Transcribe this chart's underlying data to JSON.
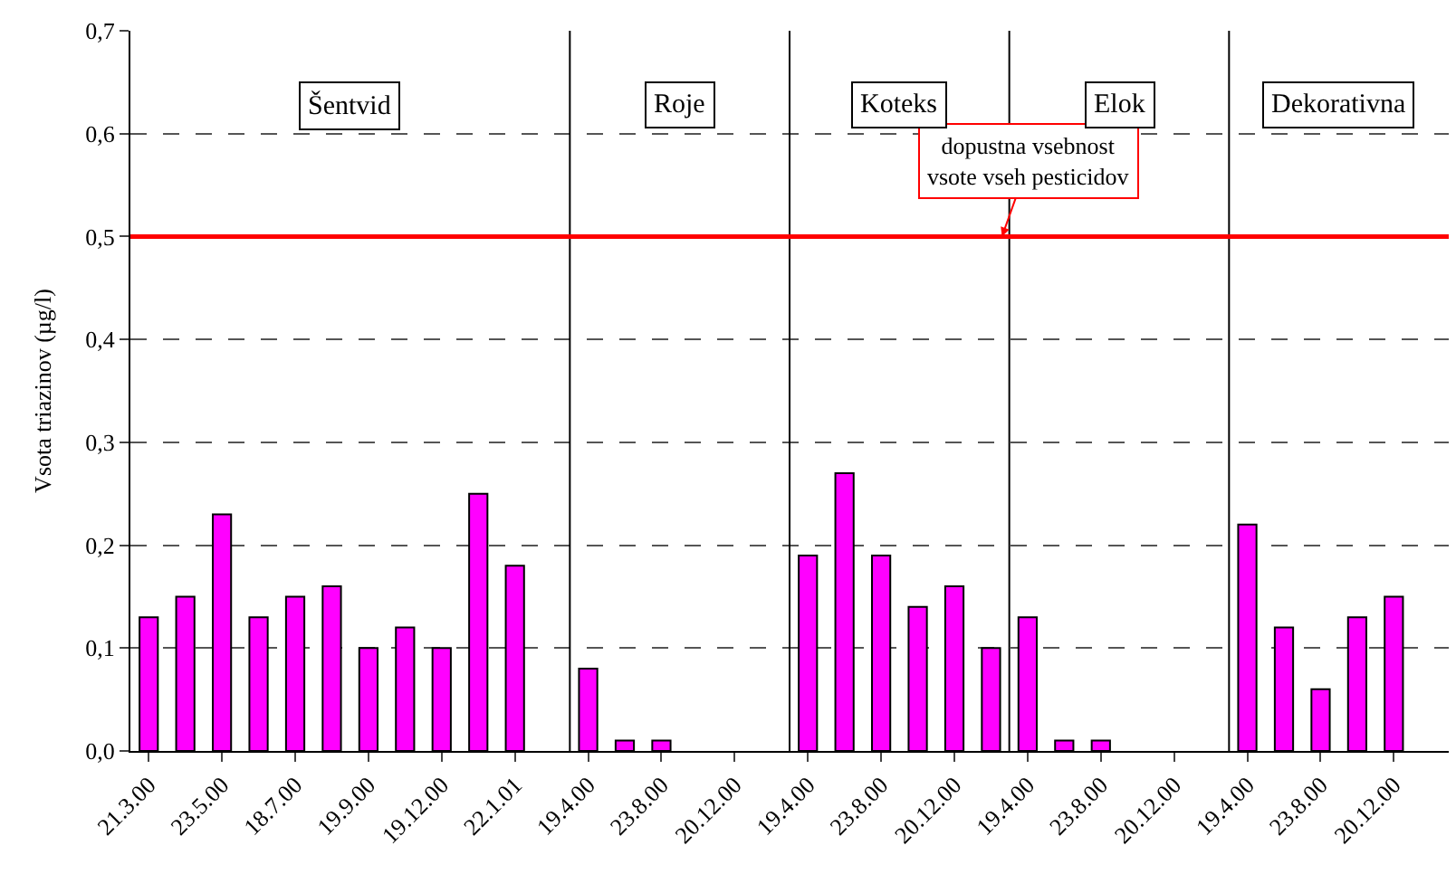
{
  "chart_data": {
    "type": "bar",
    "ylabel": "Vsota triazinov (µg/l)",
    "categories": [
      "21.3.00",
      null,
      "23.5.00",
      null,
      "18.7.00",
      null,
      "19.9.00",
      null,
      "19.12.00",
      null,
      "22.1.01",
      null,
      "19.4.00",
      null,
      "23.8.00",
      null,
      "20.12.00",
      null,
      "19.4.00",
      null,
      "23.8.00",
      null,
      "20.12.00",
      null,
      "19.4.00",
      null,
      "23.8.00",
      null,
      "20.12.00",
      null,
      "19.4.00",
      null,
      "23.8.00",
      null,
      "20.12.00",
      null
    ],
    "values": [
      0.13,
      0.15,
      0.23,
      0.13,
      0.15,
      0.16,
      0.1,
      0.12,
      0.1,
      0.25,
      0.18,
      null,
      0.08,
      0.01,
      0.01,
      null,
      null,
      null,
      0.19,
      0.27,
      0.19,
      0.14,
      0.16,
      0.1,
      0.13,
      0.01,
      0.01,
      null,
      null,
      null,
      0.22,
      0.12,
      0.06,
      0.13,
      0.15,
      null
    ],
    "color": "#ff00ff",
    "ylim": [
      0,
      0.7
    ],
    "yticks": [
      {
        "value": 0,
        "label": "0,0"
      },
      {
        "value": 0.1,
        "label": "0,1"
      },
      {
        "value": 0.2,
        "label": "0,2"
      },
      {
        "value": 0.3,
        "label": "0,3"
      },
      {
        "value": 0.4,
        "label": "0,4"
      },
      {
        "value": 0.5,
        "label": "0,5"
      },
      {
        "value": 0.6,
        "label": "0,6"
      },
      {
        "value": 0.7,
        "label": "0,7"
      }
    ],
    "grid": "y",
    "ref_lines": [
      {
        "axis": "y",
        "value": 0.5,
        "label": "dopustna vsebnost\nvsote vseh pesticidov",
        "color": "#ff0000"
      }
    ],
    "annotations": [
      "Šentvid",
      "Roje",
      "Koteks",
      "Elok",
      "Dekorativna"
    ]
  }
}
